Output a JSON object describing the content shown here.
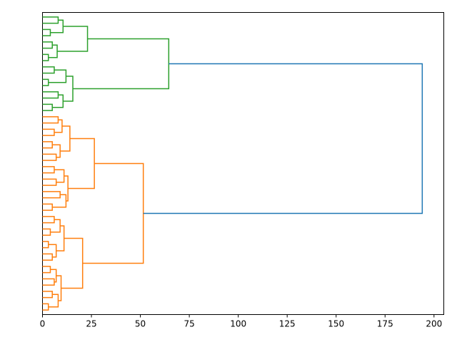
{
  "chart_data": {
    "type": "dendrogram",
    "orientation": "left",
    "xlim": [
      0,
      205
    ],
    "xticks": [
      0,
      25,
      50,
      75,
      100,
      125,
      150,
      175,
      200
    ],
    "tree": {
      "height": 194,
      "color": "#1f77b4",
      "children": [
        {
          "height": 64.5,
          "color": "#2ca02c",
          "children": [
            {
              "height": 23,
              "children": [
                {
                  "height": 10.5,
                  "children": [
                    {
                      "height": 8
                    },
                    {
                      "height": 4
                    }
                  ]
                },
                {
                  "height": 7.5,
                  "children": [
                    {
                      "height": 5
                    },
                    {
                      "height": 3
                    }
                  ]
                }
              ]
            },
            {
              "height": 15.5,
              "children": [
                {
                  "height": 12,
                  "children": [
                    {
                      "height": 6
                    },
                    {
                      "height": 3
                    }
                  ]
                },
                {
                  "height": 10.5,
                  "children": [
                    {
                      "height": 8
                    },
                    {
                      "height": 5
                    }
                  ]
                }
              ]
            }
          ]
        },
        {
          "height": 51.5,
          "color": "#ff7f0e",
          "children": [
            {
              "height": 26.5,
              "children": [
                {
                  "height": 14,
                  "children": [
                    {
                      "height": 10,
                      "children": [
                        {
                          "height": 8
                        },
                        {
                          "height": 6
                        }
                      ]
                    },
                    {
                      "height": 9,
                      "children": [
                        {
                          "height": 5
                        },
                        {
                          "height": 7
                        }
                      ]
                    }
                  ]
                },
                {
                  "height": 13,
                  "children": [
                    {
                      "height": 11,
                      "children": [
                        {
                          "height": 6
                        },
                        {
                          "height": 7
                        }
                      ]
                    },
                    {
                      "height": 12,
                      "children": [
                        {
                          "height": 9
                        },
                        {
                          "height": 5
                        }
                      ]
                    }
                  ]
                }
              ]
            },
            {
              "height": 20.5,
              "children": [
                {
                  "height": 11,
                  "children": [
                    {
                      "height": 9,
                      "children": [
                        {
                          "height": 6
                        },
                        {
                          "height": 4
                        }
                      ]
                    },
                    {
                      "height": 7,
                      "children": [
                        {
                          "height": 3
                        },
                        {
                          "height": 5
                        }
                      ]
                    }
                  ]
                },
                {
                  "height": 9.5,
                  "children": [
                    {
                      "height": 7,
                      "children": [
                        {
                          "height": 4
                        },
                        {
                          "height": 6
                        }
                      ]
                    },
                    {
                      "height": 8,
                      "children": [
                        {
                          "height": 5
                        },
                        {
                          "height": 3
                        }
                      ]
                    }
                  ]
                }
              ]
            }
          ]
        }
      ]
    }
  }
}
